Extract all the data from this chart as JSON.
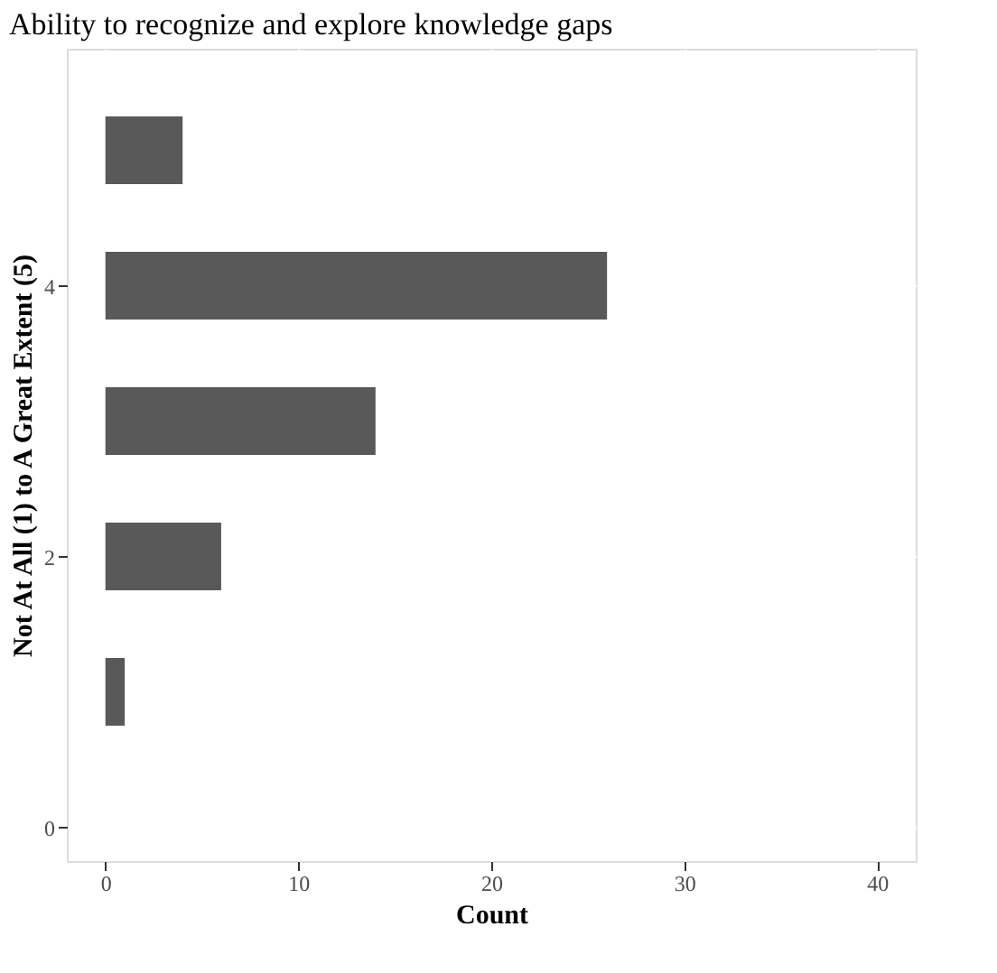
{
  "chart_data": {
    "type": "bar",
    "orientation": "horizontal",
    "title": "Ability to recognize and explore knowledge gaps",
    "xlabel": "Count",
    "ylabel": "Not At All (1) to A Great Extent (5)",
    "x": [
      1,
      2,
      3,
      4,
      5
    ],
    "series": [
      {
        "color": "#595959",
        "values": [
          1,
          6,
          14,
          26,
          4
        ]
      }
    ],
    "xlim": [
      -2,
      42
    ],
    "xticks": [
      0,
      10,
      20,
      30,
      40
    ],
    "ylim": [
      -0.25,
      5.75
    ],
    "yticks": [
      0,
      2,
      4
    ],
    "grid": true,
    "legend": false
  }
}
